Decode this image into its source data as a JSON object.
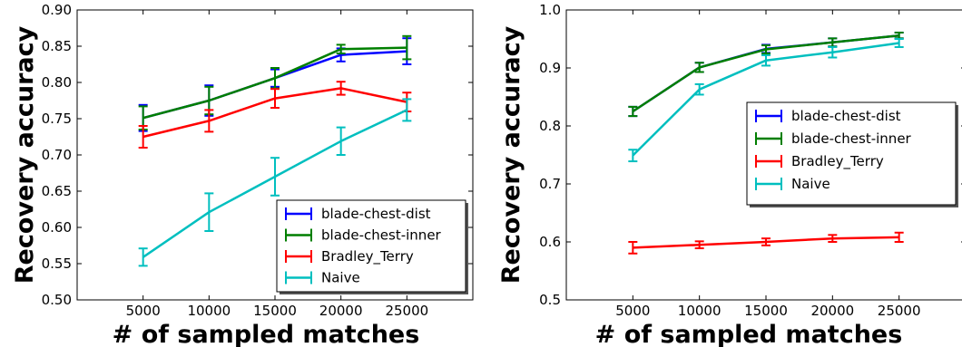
{
  "colors": {
    "blade-chest-dist": "#0000ff",
    "blade-chest-inner": "#007f00",
    "Bradley_Terry": "#ff0000",
    "Naive": "#00bfbf"
  },
  "chart_data": [
    {
      "type": "line",
      "xlabel": "# of sampled matches",
      "ylabel": "Recovery accuracy",
      "x": [
        5000,
        10000,
        15000,
        20000,
        25000
      ],
      "xlim": [
        0,
        30000
      ],
      "ylim": [
        0.5,
        0.9
      ],
      "xticks": [
        "5000",
        "10000",
        "15000",
        "20000",
        "25000"
      ],
      "yticks": [
        "0.50",
        "0.55",
        "0.60",
        "0.65",
        "0.70",
        "0.75",
        "0.80",
        "0.85",
        "0.90"
      ],
      "grid": false,
      "legend_position": "lower-right",
      "series": [
        {
          "name": "blade-chest-dist",
          "color": "#0000ff",
          "values": [
            0.751,
            0.775,
            0.806,
            0.838,
            0.843
          ],
          "errors": [
            0.018,
            0.021,
            0.012,
            0.009,
            0.018
          ]
        },
        {
          "name": "blade-chest-inner",
          "color": "#007f00",
          "values": [
            0.751,
            0.775,
            0.806,
            0.846,
            0.848
          ],
          "errors": [
            0.016,
            0.019,
            0.014,
            0.006,
            0.016
          ]
        },
        {
          "name": "Bradley_Terry",
          "color": "#ff0000",
          "values": [
            0.725,
            0.747,
            0.778,
            0.792,
            0.773
          ],
          "errors": [
            0.015,
            0.015,
            0.013,
            0.009,
            0.013
          ]
        },
        {
          "name": "Naive",
          "color": "#00bfbf",
          "values": [
            0.559,
            0.621,
            0.67,
            0.719,
            0.762
          ],
          "errors": [
            0.012,
            0.026,
            0.026,
            0.019,
            0.015
          ]
        }
      ]
    },
    {
      "type": "line",
      "xlabel": "# of sampled matches",
      "ylabel": "Recovery accuracy",
      "x": [
        5000,
        10000,
        15000,
        20000,
        25000
      ],
      "xlim": [
        0,
        30000
      ],
      "ylim": [
        0.5,
        1.0
      ],
      "xticks": [
        "5000",
        "10000",
        "15000",
        "20000",
        "25000"
      ],
      "yticks": [
        "0.5",
        "0.6",
        "0.7",
        "0.8",
        "0.9",
        "1.0"
      ],
      "grid": false,
      "legend_position": "center-right",
      "series": [
        {
          "name": "blade-chest-dist",
          "color": "#0000ff",
          "values": [
            0.825,
            0.901,
            0.933,
            0.944,
            0.956
          ],
          "errors": [
            0.008,
            0.008,
            0.007,
            0.007,
            0.005
          ]
        },
        {
          "name": "blade-chest-inner",
          "color": "#007f00",
          "values": [
            0.825,
            0.901,
            0.932,
            0.944,
            0.956
          ],
          "errors": [
            0.008,
            0.008,
            0.007,
            0.007,
            0.005
          ]
        },
        {
          "name": "Bradley_Terry",
          "color": "#ff0000",
          "values": [
            0.59,
            0.595,
            0.6,
            0.606,
            0.608
          ],
          "errors": [
            0.01,
            0.006,
            0.006,
            0.006,
            0.008
          ]
        },
        {
          "name": "Naive",
          "color": "#00bfbf",
          "values": [
            0.749,
            0.863,
            0.913,
            0.927,
            0.943
          ],
          "errors": [
            0.01,
            0.009,
            0.009,
            0.009,
            0.007
          ]
        }
      ]
    }
  ]
}
